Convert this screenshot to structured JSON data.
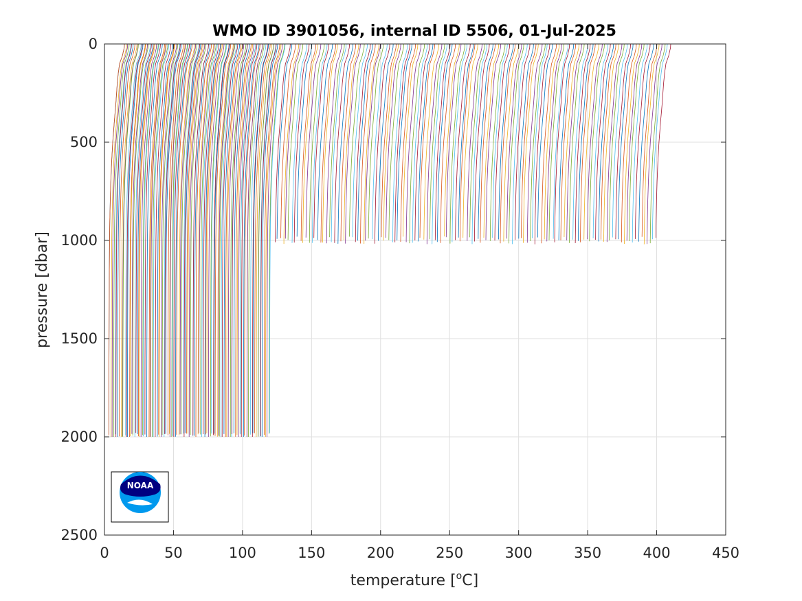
{
  "chart_data": {
    "type": "line",
    "title": "WMO ID 3901056, internal ID 5506, 01-Jul-2025",
    "xlabel_prefix": "temperature [",
    "xlabel_sup": "o",
    "xlabel_suffix": "C]",
    "ylabel": "pressure [dbar]",
    "xlim": [
      0,
      450
    ],
    "ylim": [
      0,
      2500
    ],
    "y_reversed": true,
    "grid": true,
    "xticks": [
      "0",
      "50",
      "100",
      "150",
      "200",
      "250",
      "300",
      "350",
      "400",
      "450"
    ],
    "yticks": [
      "0",
      "500",
      "1000",
      "1500",
      "2000",
      "2500"
    ],
    "series_layout": "waterfall: each successive profile offset along x",
    "profile_groups": [
      {
        "count": 118,
        "x_offset_start": 0,
        "x_offset_end": 117,
        "max_pressure": 2000
      },
      {
        "count": 134,
        "x_offset_start": 120,
        "x_offset_end": 396,
        "max_pressure": 1000
      }
    ],
    "typical_profile": {
      "pressure": [
        0,
        20,
        60,
        100,
        150,
        200,
        300,
        400,
        500,
        600,
        700,
        800,
        900,
        1000,
        1200,
        1400,
        1600,
        1800,
        2000
      ],
      "temperature": [
        14,
        13.8,
        12.5,
        10.5,
        9.5,
        8.8,
        7.8,
        6.6,
        5.5,
        4.7,
        4.1,
        3.7,
        3.4,
        3.2,
        3.0,
        2.9,
        2.8,
        2.75,
        2.7
      ]
    },
    "line_colors": [
      "#0072BD",
      "#D95319",
      "#EDB120",
      "#7E2F8E",
      "#77AC30",
      "#4DBEEE",
      "#A2142F"
    ]
  },
  "logo": {
    "text": "NOAA",
    "colors": {
      "dark": "#000080",
      "light": "#0099ee"
    }
  }
}
